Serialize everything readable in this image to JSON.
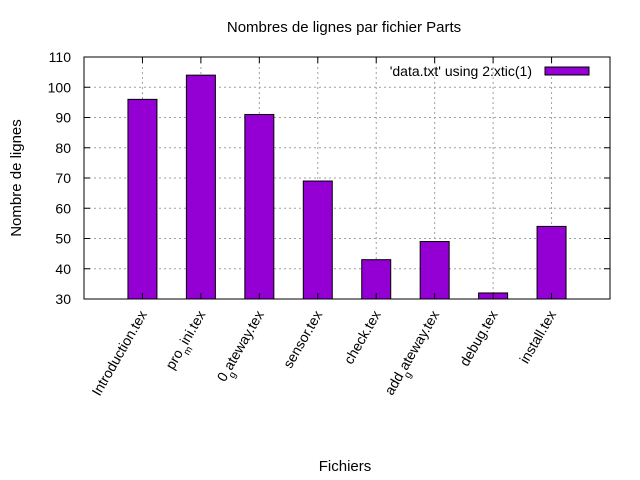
{
  "chart_data": {
    "type": "bar",
    "title": "Nombres de lignes par fichier Parts",
    "xlabel": "Fichiers",
    "ylabel": "Nombre de lignes",
    "ylim": [
      30,
      110
    ],
    "yticks": [
      30,
      40,
      50,
      60,
      70,
      80,
      90,
      100,
      110
    ],
    "grid": true,
    "legend_position": "top-right",
    "bar_color": "#9400d3",
    "categories": [
      "Introduction.tex",
      "pro_mini.tex",
      "0_gateway.tex",
      "sensor.tex",
      "check.tex",
      "add_gateway.tex",
      "debug.tex",
      "install.tex"
    ],
    "category_display": [
      {
        "parts": [
          {
            "t": "Introduction.tex",
            "sub": false
          }
        ]
      },
      {
        "parts": [
          {
            "t": "pro",
            "sub": false
          },
          {
            "t": "m",
            "sub": true
          },
          {
            "t": "ini.tex",
            "sub": false
          }
        ]
      },
      {
        "parts": [
          {
            "t": "0",
            "sub": false
          },
          {
            "t": "g",
            "sub": true
          },
          {
            "t": "ateway.tex",
            "sub": false
          }
        ]
      },
      {
        "parts": [
          {
            "t": "sensor.tex",
            "sub": false
          }
        ]
      },
      {
        "parts": [
          {
            "t": "check.tex",
            "sub": false
          }
        ]
      },
      {
        "parts": [
          {
            "t": "add",
            "sub": false
          },
          {
            "t": "g",
            "sub": true
          },
          {
            "t": "ateway.tex",
            "sub": false
          }
        ]
      },
      {
        "parts": [
          {
            "t": "debug.tex",
            "sub": false
          }
        ]
      },
      {
        "parts": [
          {
            "t": "install.tex",
            "sub": false
          }
        ]
      }
    ],
    "series": [
      {
        "name": "'data.txt' using 2:xtic(1)",
        "values": [
          96,
          104,
          91,
          69,
          43,
          49,
          32,
          54
        ]
      }
    ]
  }
}
